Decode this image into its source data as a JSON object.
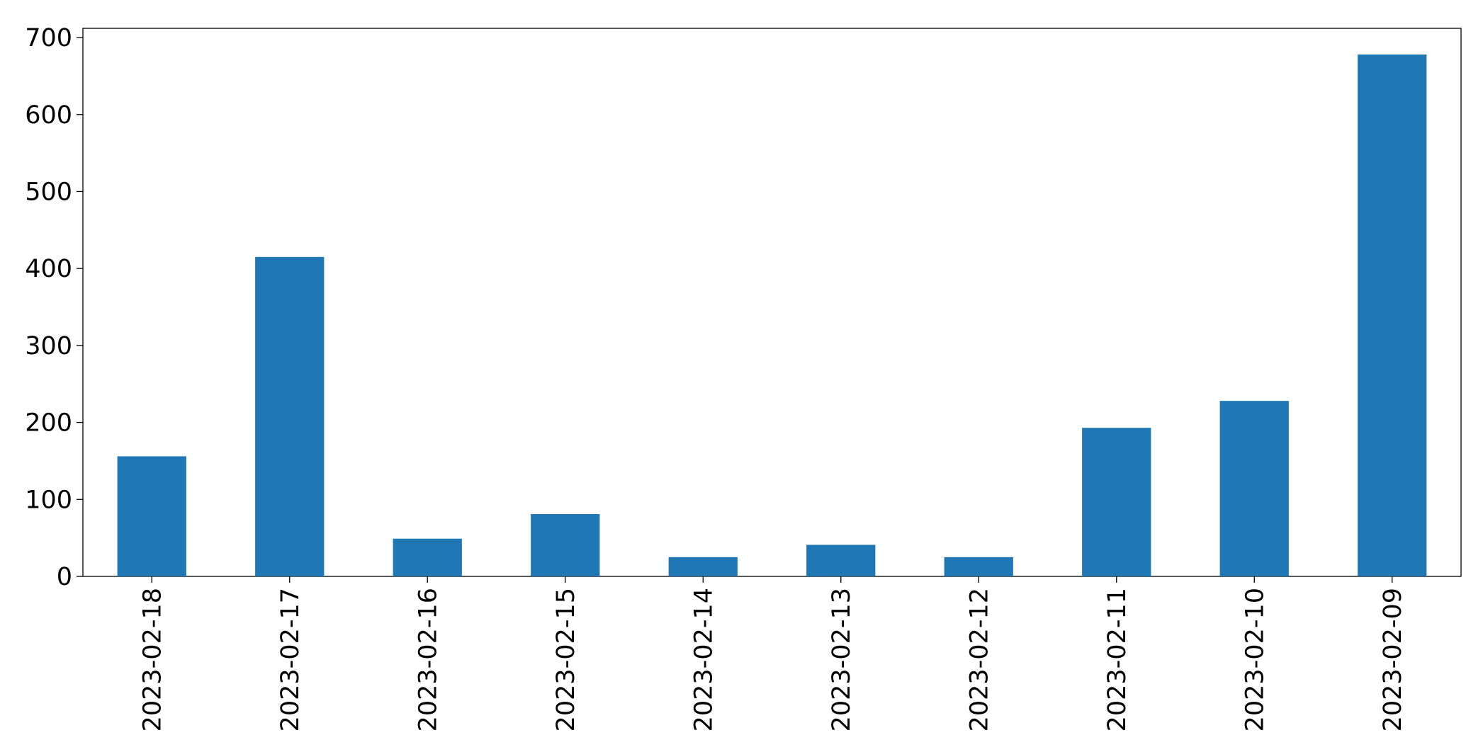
{
  "chart_data": {
    "type": "bar",
    "categories": [
      "2023-02-18",
      "2023-02-17",
      "2023-02-16",
      "2023-02-15",
      "2023-02-14",
      "2023-02-13",
      "2023-02-12",
      "2023-02-11",
      "2023-02-10",
      "2023-02-09"
    ],
    "values": [
      156,
      415,
      49,
      81,
      25,
      41,
      25,
      193,
      228,
      678
    ],
    "color": "#1f77b4",
    "ylim": [
      0,
      712
    ],
    "yticks": [
      0,
      100,
      200,
      300,
      400,
      500,
      600,
      700
    ],
    "grid": false
  }
}
